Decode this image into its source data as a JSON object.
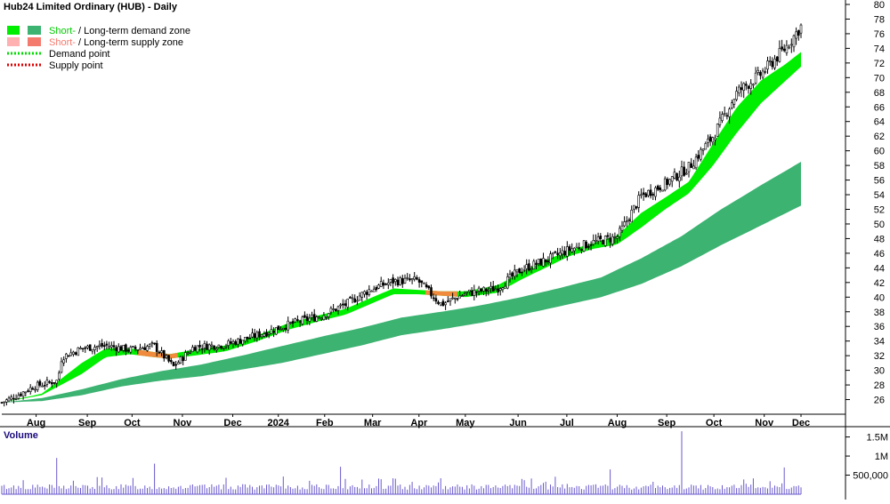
{
  "chart_data": {
    "type": "candlestick",
    "title": "Hub24 Limited Ordinary (HUB) - Daily",
    "legend": [
      {
        "short": "Short-",
        "sep": " / ",
        "long": "Long-term demand zone",
        "short_color": "#00ee00",
        "long_color": "#3cb371",
        "text_color": "#00cc00"
      },
      {
        "short": "Short-",
        "sep": " / ",
        "long": "Long-term supply zone",
        "short_color": "#ffb0b0",
        "long_color": "#f47a6e",
        "text_color": "#f47a6e"
      },
      {
        "label": "Demand point",
        "color": "#00dd00",
        "style": "dotted"
      },
      {
        "label": "Supply point",
        "color": "#dd0000",
        "style": "dotted"
      }
    ],
    "price_axis": {
      "min": 24,
      "max": 80,
      "ticks": [
        26,
        28,
        30,
        32,
        34,
        36,
        38,
        40,
        42,
        44,
        46,
        48,
        50,
        52,
        54,
        56,
        58,
        60,
        62,
        64,
        66,
        68,
        70,
        72,
        74,
        76,
        78,
        80
      ]
    },
    "x_labels": [
      {
        "label": "Aug",
        "t": 0.043
      },
      {
        "label": "Sep",
        "t": 0.107
      },
      {
        "label": "Oct",
        "t": 0.163
      },
      {
        "label": "Nov",
        "t": 0.226
      },
      {
        "label": "Dec",
        "t": 0.289
      },
      {
        "label": "2024",
        "t": 0.346
      },
      {
        "label": "Feb",
        "t": 0.404
      },
      {
        "label": "Mar",
        "t": 0.464
      },
      {
        "label": "Apr",
        "t": 0.522
      },
      {
        "label": "May",
        "t": 0.58
      },
      {
        "label": "Jun",
        "t": 0.646
      },
      {
        "label": "Jul",
        "t": 0.707
      },
      {
        "label": "Aug",
        "t": 0.77
      },
      {
        "label": "Sep",
        "t": 0.832
      },
      {
        "label": "Oct",
        "t": 0.891
      },
      {
        "label": "Nov",
        "t": 0.954
      },
      {
        "label": "Dec",
        "t": 1.0
      }
    ],
    "price_path": [
      [
        0,
        25.6
      ],
      [
        0.02,
        26.6
      ],
      [
        0.04,
        27.8
      ],
      [
        0.07,
        28.6
      ],
      [
        0.075,
        31.8
      ],
      [
        0.1,
        33.0
      ],
      [
        0.13,
        33.4
      ],
      [
        0.16,
        32.8
      ],
      [
        0.19,
        33.4
      ],
      [
        0.215,
        30.5
      ],
      [
        0.24,
        33.2
      ],
      [
        0.28,
        33.5
      ],
      [
        0.32,
        34.8
      ],
      [
        0.36,
        36.3
      ],
      [
        0.4,
        37.5
      ],
      [
        0.43,
        39.0
      ],
      [
        0.46,
        41.0
      ],
      [
        0.49,
        42.2
      ],
      [
        0.52,
        42.3
      ],
      [
        0.55,
        39.0
      ],
      [
        0.58,
        40.5
      ],
      [
        0.62,
        41.2
      ],
      [
        0.65,
        43.8
      ],
      [
        0.68,
        45.0
      ],
      [
        0.71,
        46.5
      ],
      [
        0.74,
        47.5
      ],
      [
        0.77,
        48.2
      ],
      [
        0.8,
        53.8
      ],
      [
        0.83,
        55.5
      ],
      [
        0.86,
        57.8
      ],
      [
        0.89,
        62.0
      ],
      [
        0.92,
        68.0
      ],
      [
        0.95,
        70.5
      ],
      [
        0.98,
        74.0
      ],
      [
        1.0,
        77.0
      ]
    ],
    "short_zone": [
      [
        0,
        25.6,
        25.6
      ],
      [
        0.05,
        26.6,
        26.8
      ],
      [
        0.1,
        29.5,
        31.0
      ],
      [
        0.13,
        31.8,
        33.0
      ],
      [
        0.16,
        32.2,
        33.0
      ],
      [
        0.19,
        31.8,
        32.5
      ],
      [
        0.21,
        31.6,
        32.2
      ],
      [
        0.24,
        32.0,
        32.8
      ],
      [
        0.28,
        32.6,
        33.4
      ],
      [
        0.32,
        34.0,
        34.8
      ],
      [
        0.36,
        35.6,
        36.5
      ],
      [
        0.4,
        36.8,
        37.6
      ],
      [
        0.43,
        37.6,
        38.4
      ],
      [
        0.46,
        39.0,
        39.8
      ],
      [
        0.49,
        40.4,
        41.2
      ],
      [
        0.52,
        40.4,
        41.0
      ],
      [
        0.55,
        40.2,
        40.8
      ],
      [
        0.58,
        40.0,
        40.8
      ],
      [
        0.62,
        40.6,
        41.6
      ],
      [
        0.65,
        42.4,
        43.4
      ],
      [
        0.68,
        44.0,
        45.0
      ],
      [
        0.71,
        45.6,
        46.4
      ],
      [
        0.74,
        46.6,
        47.4
      ],
      [
        0.77,
        47.2,
        48.4
      ],
      [
        0.8,
        49.5,
        51.5
      ],
      [
        0.83,
        52.0,
        53.6
      ],
      [
        0.86,
        54.2,
        55.8
      ],
      [
        0.89,
        58.0,
        61.0
      ],
      [
        0.92,
        62.5,
        66.0
      ],
      [
        0.95,
        66.5,
        69.6
      ],
      [
        0.98,
        69.5,
        71.8
      ],
      [
        1.0,
        71.5,
        73.5
      ]
    ],
    "long_zone": [
      [
        0,
        25.6,
        25.6
      ],
      [
        0.05,
        25.8,
        26.2
      ],
      [
        0.1,
        26.6,
        27.4
      ],
      [
        0.15,
        27.8,
        28.8
      ],
      [
        0.2,
        28.6,
        29.9
      ],
      [
        0.25,
        29.2,
        30.8
      ],
      [
        0.3,
        30.1,
        32.0
      ],
      [
        0.35,
        31.0,
        33.3
      ],
      [
        0.4,
        32.2,
        34.6
      ],
      [
        0.45,
        33.4,
        35.8
      ],
      [
        0.5,
        34.8,
        37.2
      ],
      [
        0.55,
        35.6,
        38.0
      ],
      [
        0.6,
        36.5,
        38.9
      ],
      [
        0.65,
        37.6,
        40.0
      ],
      [
        0.7,
        38.8,
        41.3
      ],
      [
        0.75,
        40.0,
        42.7
      ],
      [
        0.8,
        41.8,
        45.3
      ],
      [
        0.85,
        44.2,
        48.3
      ],
      [
        0.9,
        47.1,
        52.0
      ],
      [
        0.95,
        49.8,
        55.3
      ],
      [
        1.0,
        52.5,
        58.5
      ]
    ],
    "supply_segments": [
      [
        0.17,
        0.22
      ],
      [
        0.53,
        0.57
      ]
    ],
    "volume": {
      "title": "Volume",
      "ticks": [
        {
          "label": "1.5M",
          "value": 1500000
        },
        {
          "label": "1M",
          "value": 1000000
        },
        {
          "label": "500,000",
          "value": 500000
        }
      ],
      "max": 1700000,
      "spikes": [
        [
          0.07,
          950000
        ],
        [
          0.19,
          800000
        ],
        [
          0.425,
          720000
        ],
        [
          0.76,
          650000
        ],
        [
          0.85,
          1650000
        ],
        [
          0.98,
          700000
        ],
        [
          0.12,
          450000
        ],
        [
          0.28,
          430000
        ],
        [
          0.55,
          420000
        ],
        [
          0.65,
          400000
        ]
      ],
      "base_low": 120000,
      "base_high": 260000
    }
  }
}
